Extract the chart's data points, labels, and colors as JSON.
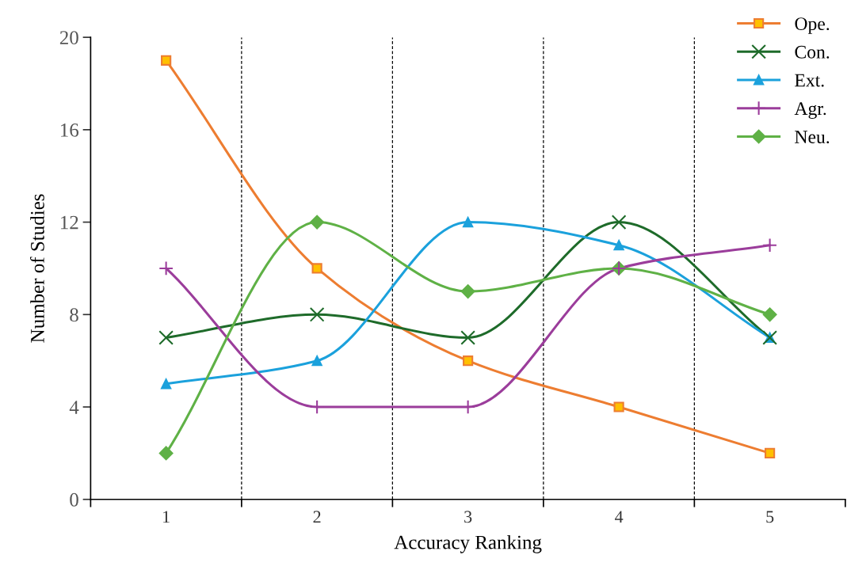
{
  "chart_data": {
    "type": "line",
    "xlabel": "Accuracy Ranking",
    "ylabel": "Number of Studies",
    "categories": [
      "1",
      "2",
      "3",
      "4",
      "5"
    ],
    "series": [
      {
        "name": "Ope.",
        "color": "#ed7d31",
        "marker": "square",
        "values": [
          19,
          10,
          6,
          4,
          2
        ]
      },
      {
        "name": "Con.",
        "color": "#1e6b2a",
        "marker": "cross",
        "values": [
          7,
          8,
          7,
          12,
          7
        ]
      },
      {
        "name": "Ext.",
        "color": "#1ba1dc",
        "marker": "triangle",
        "values": [
          5,
          6,
          12,
          11,
          7
        ]
      },
      {
        "name": "Agr.",
        "color": "#9b3d9b",
        "marker": "plus",
        "values": [
          10,
          4,
          4,
          10,
          11
        ]
      },
      {
        "name": "Neu.",
        "color": "#5fb146",
        "marker": "diamond",
        "values": [
          2,
          12,
          9,
          10,
          8
        ]
      }
    ],
    "ylim": [
      0,
      20
    ],
    "yticks": [
      0,
      4,
      8,
      12,
      16,
      20
    ],
    "grid": "x",
    "legend": "top right",
    "line_style": "solid"
  }
}
